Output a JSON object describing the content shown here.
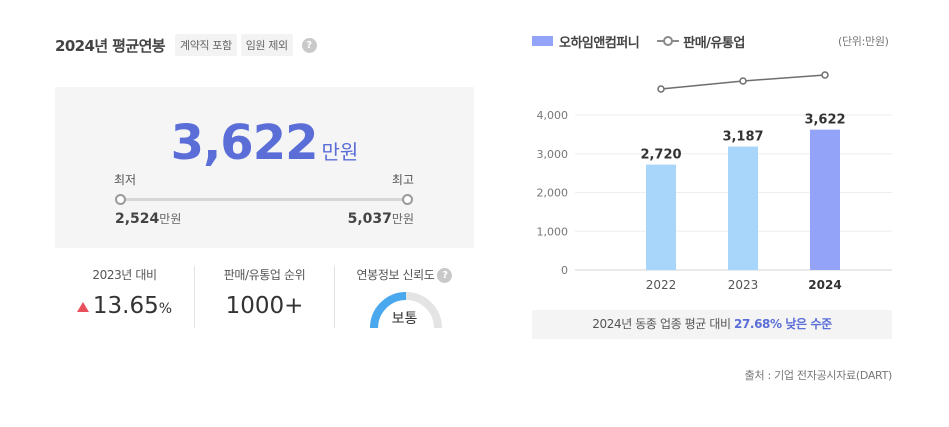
{
  "header": {
    "title": "2024년 평균연봉",
    "tags": [
      "계약직 포함",
      "임원 제외"
    ],
    "help_glyph": "?"
  },
  "salary": {
    "average": "3,622",
    "unit": "만원",
    "min_label": "최저",
    "max_label": "최고",
    "min_value": "2,524",
    "max_value": "5,037",
    "value_unit": "만원"
  },
  "stats": {
    "yoy_label": "2023년 대비",
    "yoy_value": "13.65",
    "yoy_suffix": "%",
    "rank_label": "판매/유통업 순위",
    "rank_value": "1000+",
    "reliability_label": "연봉정보 신뢰도",
    "reliability_value": "보통",
    "reliability_level": 0.5
  },
  "legend": {
    "company": "오하임앤컴퍼니",
    "industry": "판매/유통업",
    "unit_note": "(단위:만원)"
  },
  "chart_data": {
    "type": "bar",
    "categories": [
      "2022",
      "2023",
      "2024"
    ],
    "series": [
      {
        "name": "오하임앤컴퍼니",
        "values": [
          2720,
          3187,
          3622
        ],
        "labels": [
          "2,720",
          "3,187",
          "3,622"
        ]
      },
      {
        "name": "판매/유통업",
        "type": "line",
        "values": [
          null,
          null,
          null
        ]
      }
    ],
    "ylim": [
      0,
      4000
    ],
    "yticks": [
      0,
      1000,
      2000,
      3000,
      4000
    ],
    "ytick_labels": [
      "0",
      "1,000",
      "2,000",
      "3,000",
      "4,000"
    ],
    "grid": true,
    "colors": {
      "bar": "#a8d6fb",
      "bar_highlight": "#93a3f8",
      "line": "#6e6e6e"
    }
  },
  "comparison": {
    "prefix": "2024년 동종 업종 평균 대비",
    "highlight": "27.68% 낮은 수준"
  },
  "source": "출처 : 기업 전자공시자료(DART)"
}
